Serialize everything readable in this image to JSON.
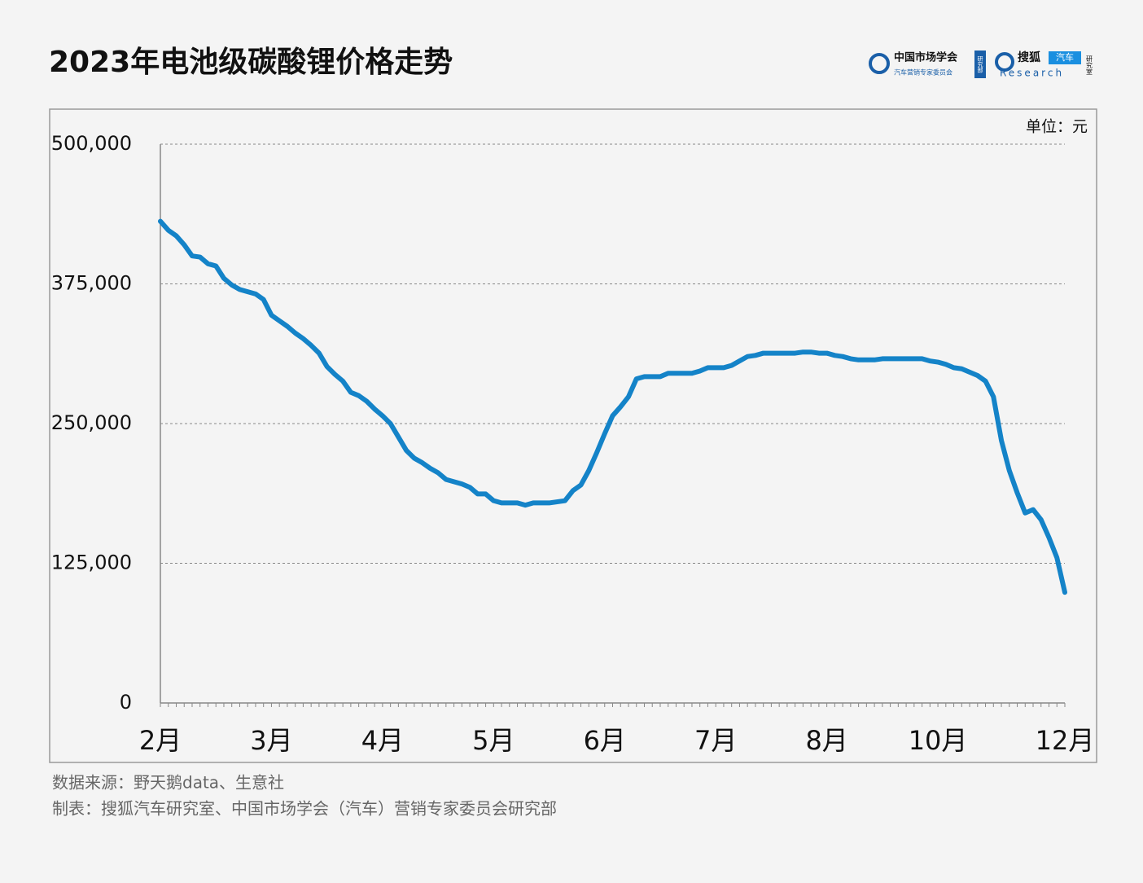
{
  "chart_data": {
    "type": "line",
    "title": "2023年电池级碳酸锂价格走势",
    "unit_label": "单位：元",
    "source": "数据来源：野天鹅data、生意社",
    "credit": "制表：搜狐汽车研究室、中国市场学会（汽车）营销专家委员会研究部",
    "logos": [
      "中国市场学会",
      "汽车营销专家委员会",
      "研究部",
      "搜狐",
      "汽车",
      "Research",
      "研究室"
    ],
    "categories": [
      "2月",
      null,
      null,
      null,
      null,
      null,
      null,
      null,
      null,
      null,
      null,
      null,
      null,
      null,
      "3月",
      null,
      null,
      null,
      null,
      null,
      null,
      null,
      null,
      null,
      null,
      null,
      null,
      null,
      "4月",
      null,
      null,
      null,
      null,
      null,
      null,
      null,
      null,
      null,
      null,
      null,
      null,
      null,
      "5月",
      null,
      null,
      null,
      null,
      null,
      null,
      null,
      null,
      null,
      null,
      null,
      null,
      null,
      "6月",
      null,
      null,
      null,
      null,
      null,
      null,
      null,
      null,
      null,
      null,
      null,
      null,
      null,
      "7月",
      null,
      null,
      null,
      null,
      null,
      null,
      null,
      null,
      null,
      null,
      null,
      null,
      null,
      "8月",
      null,
      null,
      null,
      null,
      null,
      null,
      null,
      null,
      null,
      null,
      null,
      null,
      null,
      "10月",
      null,
      null,
      null,
      null,
      null,
      null,
      null,
      null,
      null,
      null,
      null,
      null,
      null,
      null,
      null,
      "12月"
    ],
    "series": [
      {
        "color": "#1483c8",
        "values": [
          431000,
          423000,
          418000,
          410000,
          400000,
          399000,
          393000,
          391000,
          380000,
          374000,
          370000,
          368000,
          366000,
          361000,
          347000,
          342000,
          337000,
          331000,
          326000,
          320000,
          313000,
          301000,
          294000,
          288000,
          278000,
          275000,
          270000,
          263000,
          257000,
          250000,
          238000,
          226000,
          219000,
          215000,
          210000,
          206000,
          200000,
          198000,
          196000,
          193000,
          187000,
          187000,
          181000,
          179000,
          179000,
          179000,
          177000,
          179000,
          179000,
          179000,
          180000,
          181000,
          190000,
          195000,
          208000,
          224000,
          241000,
          257000,
          265000,
          274000,
          290000,
          292000,
          292000,
          292000,
          295000,
          295000,
          295000,
          295000,
          297000,
          300000,
          300000,
          300000,
          302000,
          306000,
          310000,
          311000,
          313000,
          313000,
          313000,
          313000,
          313000,
          314000,
          314000,
          313000,
          313000,
          311000,
          310000,
          308000,
          307000,
          307000,
          307000,
          308000,
          308000,
          308000,
          308000,
          308000,
          308000,
          306000,
          305000,
          303000,
          300000,
          299000,
          296000,
          293000,
          288000,
          274000,
          235000,
          208000,
          188000,
          170000,
          173000,
          164000,
          148000,
          130000,
          99000
        ]
      }
    ],
    "ylim": [
      0,
      500000
    ],
    "yticks": [
      0,
      {
        "value": 125000,
        "label": "125,000"
      },
      {
        "value": 250000,
        "label": "250,000"
      },
      {
        "value": 375000,
        "label": "375,000"
      },
      {
        "value": 500000,
        "label": "500,000"
      }
    ],
    "grid": true
  }
}
